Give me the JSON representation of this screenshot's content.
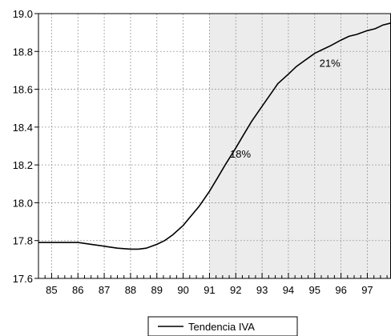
{
  "chart_data": {
    "type": "line",
    "xlim": [
      1984.5,
      1997.9
    ],
    "ylim": [
      17.6,
      19.0
    ],
    "x_ticks": [
      {
        "value": 1985,
        "label": "85"
      },
      {
        "value": 1986,
        "label": "86"
      },
      {
        "value": 1987,
        "label": "87"
      },
      {
        "value": 1988,
        "label": "88"
      },
      {
        "value": 1989,
        "label": "89"
      },
      {
        "value": 1990,
        "label": "90"
      },
      {
        "value": 1991,
        "label": "91"
      },
      {
        "value": 1992,
        "label": "92"
      },
      {
        "value": 1993,
        "label": "93"
      },
      {
        "value": 1994,
        "label": "94"
      },
      {
        "value": 1995,
        "label": "95"
      },
      {
        "value": 1996,
        "label": "96"
      },
      {
        "value": 1997,
        "label": "97"
      }
    ],
    "y_ticks": [
      {
        "value": 17.6,
        "label": "17.6"
      },
      {
        "value": 17.8,
        "label": "17.8"
      },
      {
        "value": 18.0,
        "label": "18.0"
      },
      {
        "value": 18.2,
        "label": "18.2"
      },
      {
        "value": 18.4,
        "label": "18.4"
      },
      {
        "value": 18.6,
        "label": "18.6"
      },
      {
        "value": 18.8,
        "label": "18.8"
      },
      {
        "value": 19.0,
        "label": "19.0"
      }
    ],
    "grid": true,
    "shaded_region": {
      "from": 1991.0,
      "to": 1997.9,
      "color": "#ececec"
    },
    "series": [
      {
        "name": "Tendencia IVA",
        "color": "#000000",
        "x": [
          1984.5,
          1985.5,
          1986.0,
          1986.5,
          1987.0,
          1987.5,
          1988.0,
          1988.3,
          1988.6,
          1989.0,
          1989.3,
          1989.6,
          1990.0,
          1990.3,
          1990.6,
          1991.0,
          1991.3,
          1991.6,
          1992.0,
          1992.3,
          1992.6,
          1993.0,
          1993.3,
          1993.6,
          1994.0,
          1994.3,
          1994.6,
          1995.0,
          1995.3,
          1995.6,
          1996.0,
          1996.3,
          1996.6,
          1997.0,
          1997.3,
          1997.6,
          1997.9
        ],
        "y": [
          17.79,
          17.79,
          17.79,
          17.78,
          17.77,
          17.76,
          17.755,
          17.755,
          17.76,
          17.78,
          17.8,
          17.83,
          17.88,
          17.93,
          17.98,
          18.06,
          18.13,
          18.2,
          18.29,
          18.36,
          18.43,
          18.51,
          18.57,
          18.63,
          18.68,
          18.72,
          18.75,
          18.79,
          18.81,
          18.83,
          18.86,
          18.88,
          18.89,
          18.91,
          18.92,
          18.94,
          18.95
        ]
      }
    ],
    "annotations": [
      {
        "text": "18%",
        "x": 1991.9,
        "y": 18.26
      },
      {
        "text": "21%",
        "x": 1995.3,
        "y": 18.74
      }
    ],
    "legend": {
      "position": "bottom-center",
      "entries": [
        "Tendencia IVA"
      ]
    }
  }
}
